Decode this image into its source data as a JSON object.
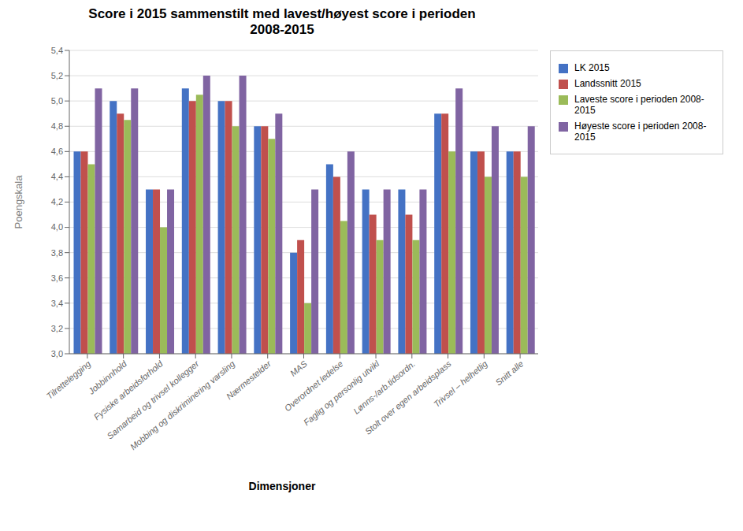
{
  "chart_data": {
    "type": "bar",
    "title": "Score i 2015 sammenstilt med lavest/høyest score i perioden\n2008-2015",
    "xlabel": "Dimensjoner",
    "ylabel": "Poengskala",
    "categories": [
      "Tilrettelegging",
      "Jobbinnhold",
      "Fysiske arbeidsforhold",
      "Samarbeid og trivsel kollegger",
      "Mobbing og diskriminering varsling",
      "Nærmestelder",
      "MAS",
      "Overordnet ledelse",
      "Faglig og personlig utvikl",
      "Lønns-/arb.tidsordn.",
      "Stolt over egen arbeidsplass",
      "Trivsel – helhetlig",
      "Snitt alle"
    ],
    "series": [
      {
        "name": "LK 2015",
        "color": "#4472C4",
        "values": [
          4.6,
          5.0,
          4.3,
          5.1,
          5.0,
          4.8,
          3.8,
          4.5,
          4.3,
          4.3,
          4.9,
          4.6,
          4.6
        ]
      },
      {
        "name": "Landssnitt 2015",
        "color": "#C0504D",
        "values": [
          4.6,
          4.9,
          4.3,
          5.0,
          5.0,
          4.8,
          3.9,
          4.4,
          4.1,
          4.1,
          4.9,
          4.6,
          4.6
        ]
      },
      {
        "name": "Laveste score i perioden 2008-2015",
        "color": "#9BBB59",
        "values": [
          4.5,
          4.85,
          4.0,
          5.05,
          4.8,
          4.7,
          3.4,
          4.05,
          3.9,
          3.9,
          4.6,
          4.4,
          4.4
        ]
      },
      {
        "name": "Høyeste score i perioden 2008-2015",
        "color": "#8064A2",
        "values": [
          5.1,
          5.1,
          4.3,
          5.2,
          5.2,
          4.9,
          4.3,
          4.6,
          4.3,
          4.3,
          5.1,
          4.8,
          4.8
        ]
      }
    ],
    "ylim": [
      3.0,
      5.4
    ],
    "yticks": [
      {
        "value": 3.0,
        "label": "3,0"
      },
      {
        "value": 3.2,
        "label": "3,2"
      },
      {
        "value": 3.4,
        "label": "3,4"
      },
      {
        "value": 3.6,
        "label": "3,6"
      },
      {
        "value": 3.8,
        "label": "3,8"
      },
      {
        "value": 4.0,
        "label": "4,0"
      },
      {
        "value": 4.2,
        "label": "4,2"
      },
      {
        "value": 4.4,
        "label": "4,4"
      },
      {
        "value": 4.6,
        "label": "4,6"
      },
      {
        "value": 4.8,
        "label": "4,8"
      },
      {
        "value": 5.0,
        "label": "5,0"
      },
      {
        "value": 5.2,
        "label": "5,2"
      },
      {
        "value": 5.4,
        "label": "5,4"
      }
    ],
    "grid": true,
    "legend": "right"
  }
}
